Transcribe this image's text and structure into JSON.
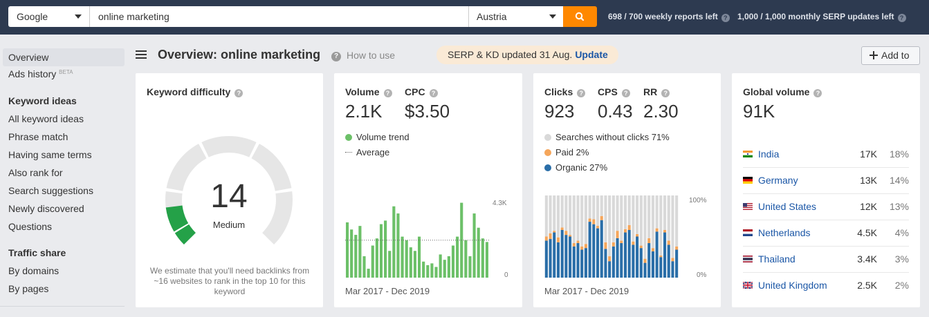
{
  "topbar": {
    "engine": "Google",
    "query": "online marketing",
    "country": "Austria",
    "weekly_reports": "698 / 700 weekly reports left",
    "monthly_updates": "1,000 / 1,000 monthly SERP updates left"
  },
  "sidebar": {
    "overview": "Overview",
    "ads_history": "Ads history",
    "beta": "BETA",
    "keyword_ideas_heading": "Keyword ideas",
    "keyword_ideas": [
      "All keyword ideas",
      "Phrase match",
      "Having same terms",
      "Also rank for",
      "Search suggestions",
      "Newly discovered",
      "Questions"
    ],
    "traffic_share_heading": "Traffic share",
    "traffic_share": [
      "By domains",
      "By pages"
    ]
  },
  "header": {
    "title": "Overview: online marketing",
    "how_to_use": "How to use",
    "serp_status": "SERP & KD updated 31 Aug.",
    "update_link": "Update",
    "add_to": "Add to"
  },
  "kd_card": {
    "title": "Keyword difficulty",
    "value": "14",
    "label": "Medium",
    "note": "We estimate that you'll need backlinks from ~16 websites to rank in the top 10 for this keyword",
    "level": 14,
    "gauge_color": "#24a148",
    "track_color": "#e6e6e6"
  },
  "volume_card": {
    "volume_label": "Volume",
    "volume_value": "2.1K",
    "cpc_label": "CPC",
    "cpc_value": "$3.50",
    "legend_trend": "Volume trend",
    "legend_average": "Average",
    "axis_max": "4.3K",
    "axis_min": "0",
    "date_range": "Mar 2017 - Dec 2019",
    "color": "#6cc068"
  },
  "clicks_card": {
    "clicks_label": "Clicks",
    "clicks_value": "923",
    "cps_label": "CPS",
    "cps_value": "0.43",
    "rr_label": "RR",
    "rr_value": "2.30",
    "legend_no_clicks": "Searches without clicks 71%",
    "legend_paid": "Paid 2%",
    "legend_organic": "Organic 27%",
    "axis_max": "100%",
    "axis_min": "0%",
    "date_range": "Mar 2017 - Dec 2019",
    "colors": {
      "no_clicks": "#d9d9d9",
      "paid": "#f5a65b",
      "organic": "#2a6ea8"
    }
  },
  "global_card": {
    "title": "Global volume",
    "value": "91K",
    "countries": [
      {
        "name": "India",
        "volume": "17K",
        "pct": "18%",
        "flag": "in"
      },
      {
        "name": "Germany",
        "volume": "13K",
        "pct": "14%",
        "flag": "de"
      },
      {
        "name": "United States",
        "volume": "12K",
        "pct": "13%",
        "flag": "us"
      },
      {
        "name": "Netherlands",
        "volume": "4.5K",
        "pct": "4%",
        "flag": "nl"
      },
      {
        "name": "Thailand",
        "volume": "3.4K",
        "pct": "3%",
        "flag": "th"
      },
      {
        "name": "United Kingdom",
        "volume": "2.5K",
        "pct": "2%",
        "flag": "gb"
      }
    ]
  },
  "chart_data": [
    {
      "type": "bar",
      "title": "Volume trend",
      "x": [
        "Mar 2017",
        "Apr 2017",
        "May 2017",
        "Jun 2017",
        "Jul 2017",
        "Aug 2017",
        "Sep 2017",
        "Oct 2017",
        "Nov 2017",
        "Dec 2017",
        "Jan 2018",
        "Feb 2018",
        "Mar 2018",
        "Apr 2018",
        "May 2018",
        "Jun 2018",
        "Jul 2018",
        "Aug 2018",
        "Sep 2018",
        "Oct 2018",
        "Nov 2018",
        "Dec 2018",
        "Jan 2019",
        "Feb 2019",
        "Mar 2019",
        "Apr 2019",
        "May 2019",
        "Jun 2019",
        "Jul 2019",
        "Aug 2019",
        "Sep 2019",
        "Oct 2019",
        "Nov 2019",
        "Dec 2019"
      ],
      "values": [
        3100,
        2700,
        2400,
        2900,
        1200,
        500,
        1800,
        2200,
        3000,
        3200,
        1500,
        4000,
        3600,
        2300,
        2100,
        1700,
        1500,
        2300,
        900,
        700,
        800,
        600,
        1300,
        1000,
        1200,
        1800,
        2300,
        4200,
        2100,
        1200,
        3600,
        2800,
        2200,
        2000
      ],
      "average": 2100,
      "ylim": [
        0,
        4300
      ],
      "series": [
        {
          "name": "Volume trend"
        }
      ]
    },
    {
      "type": "bar",
      "stacked": true,
      "title": "Clicks distribution",
      "x": [
        "Mar 2017",
        "Apr 2017",
        "May 2017",
        "Jun 2017",
        "Jul 2017",
        "Aug 2017",
        "Sep 2017",
        "Oct 2017",
        "Nov 2017",
        "Dec 2017",
        "Jan 2018",
        "Feb 2018",
        "Mar 2018",
        "Apr 2018",
        "May 2018",
        "Jun 2018",
        "Jul 2018",
        "Aug 2018",
        "Sep 2018",
        "Oct 2018",
        "Nov 2018",
        "Dec 2018",
        "Jan 2019",
        "Feb 2019",
        "Mar 2019",
        "Apr 2019",
        "May 2019",
        "Jun 2019",
        "Jul 2019",
        "Aug 2019",
        "Sep 2019",
        "Oct 2019",
        "Nov 2019",
        "Dec 2019"
      ],
      "ylim": [
        0,
        100
      ],
      "series": [
        {
          "name": "Organic",
          "values": [
            45,
            47,
            55,
            43,
            58,
            52,
            50,
            38,
            42,
            34,
            36,
            68,
            65,
            60,
            70,
            35,
            20,
            38,
            48,
            42,
            55,
            58,
            40,
            50,
            36,
            18,
            42,
            32,
            56,
            25,
            55,
            40,
            20,
            34
          ]
        },
        {
          "name": "Paid",
          "values": [
            5,
            7,
            2,
            6,
            3,
            5,
            2,
            4,
            3,
            4,
            5,
            4,
            6,
            3,
            5,
            8,
            6,
            5,
            9,
            3,
            4,
            6,
            4,
            3,
            3,
            5,
            6,
            4,
            4,
            2,
            3,
            5,
            4,
            4
          ]
        },
        {
          "name": "Searches without clicks",
          "values": [
            50,
            46,
            43,
            51,
            39,
            43,
            48,
            58,
            55,
            62,
            59,
            28,
            29,
            37,
            25,
            57,
            74,
            57,
            43,
            55,
            41,
            36,
            56,
            47,
            61,
            77,
            52,
            64,
            40,
            73,
            42,
            55,
            76,
            62
          ]
        }
      ]
    }
  ]
}
